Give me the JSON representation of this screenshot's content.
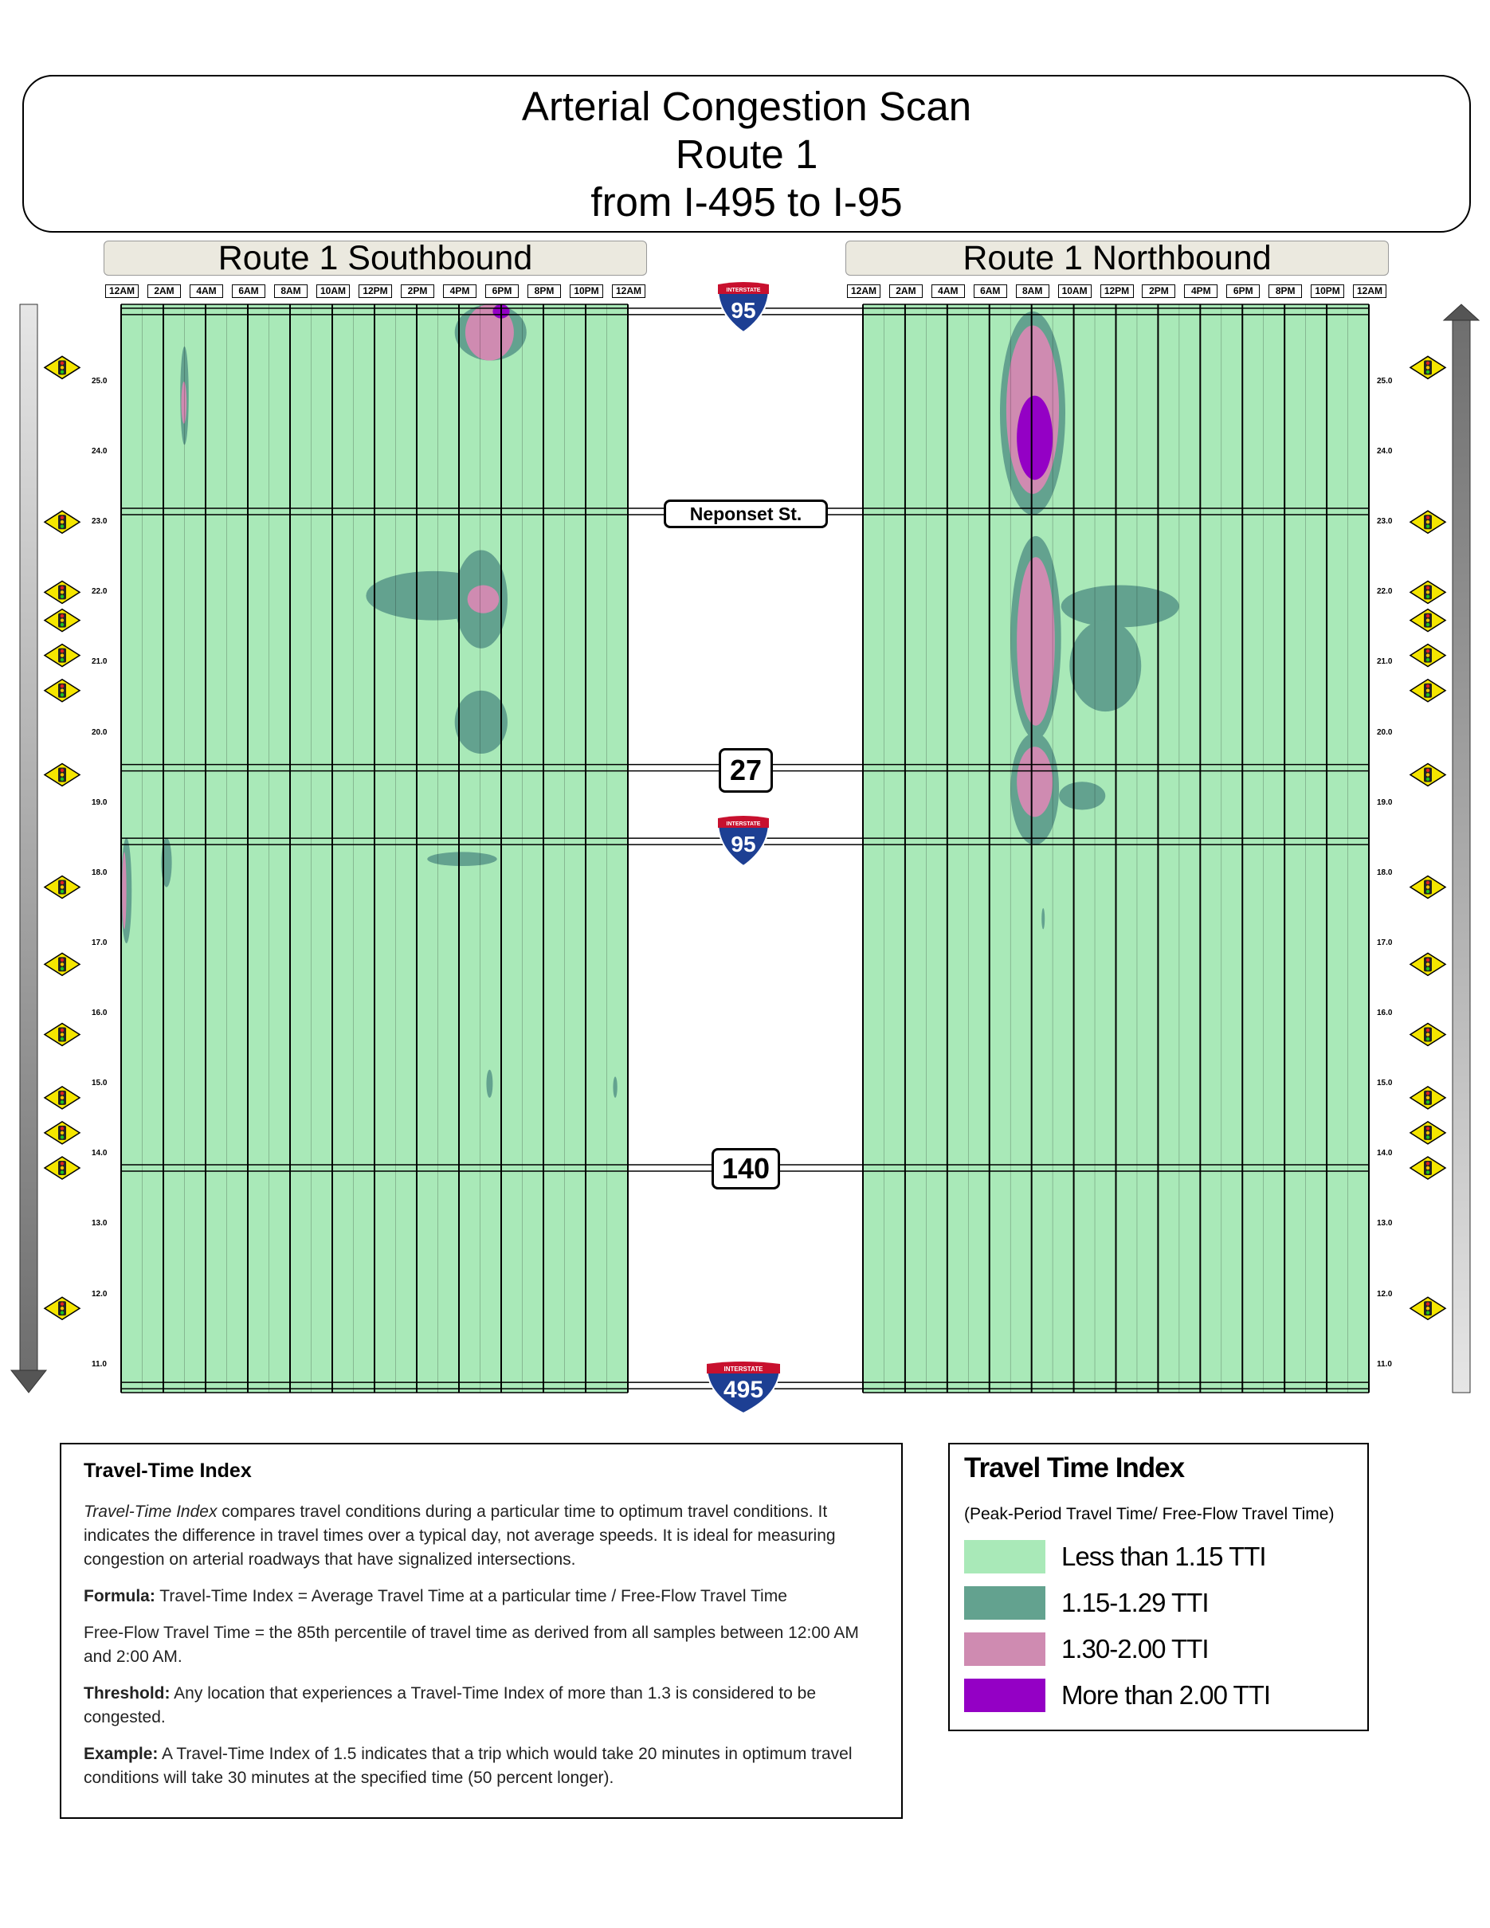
{
  "title": {
    "line1": "Arterial Congestion Scan",
    "line2": "Route 1",
    "line3": "from I-495 to I-95"
  },
  "chart_data": [
    {
      "type": "heatmap",
      "title": "Route 1 Southbound",
      "x_tick_labels": [
        "12AM",
        "2AM",
        "4AM",
        "6AM",
        "8AM",
        "10AM",
        "12PM",
        "2PM",
        "4PM",
        "6PM",
        "8PM",
        "10PM",
        "12AM"
      ],
      "y_tick_labels": [
        "25.0",
        "24.0",
        "23.0",
        "22.0",
        "21.0",
        "20.0",
        "19.0",
        "18.0",
        "17.0",
        "16.0",
        "15.0",
        "14.0",
        "13.0",
        "12.0",
        "11.0"
      ],
      "xlim_hours": [
        0,
        24
      ],
      "ylim_mile": [
        10.6,
        26.1
      ],
      "background_category": "Less than 1.15 TTI",
      "regions": [
        {
          "hour": [
            15.8,
            19.2
          ],
          "mile": [
            25.3,
            26.1
          ],
          "cat": "1.15-1.29 TTI"
        },
        {
          "hour": [
            16.3,
            18.6
          ],
          "mile": [
            25.3,
            26.1
          ],
          "cat": "1.30-2.00 TTI"
        },
        {
          "hour": [
            17.6,
            18.4
          ],
          "mile": [
            25.9,
            26.1
          ],
          "cat": "More than 2.00 TTI"
        },
        {
          "hour": [
            2.8,
            3.2
          ],
          "mile": [
            24.1,
            25.5
          ],
          "cat": "1.15-1.29 TTI"
        },
        {
          "hour": [
            2.85,
            3.1
          ],
          "mile": [
            24.4,
            25.0
          ],
          "cat": "1.30-2.00 TTI"
        },
        {
          "hour": [
            11.6,
            18.0
          ],
          "mile": [
            21.6,
            22.3
          ],
          "cat": "1.15-1.29 TTI"
        },
        {
          "hour": [
            15.8,
            18.3
          ],
          "mile": [
            21.2,
            22.6
          ],
          "cat": "1.15-1.29 TTI"
        },
        {
          "hour": [
            16.4,
            17.9
          ],
          "mile": [
            21.7,
            22.1
          ],
          "cat": "1.30-2.00 TTI"
        },
        {
          "hour": [
            15.8,
            18.3
          ],
          "mile": [
            19.7,
            20.6
          ],
          "cat": "1.15-1.29 TTI"
        },
        {
          "hour": [
            0.0,
            0.5
          ],
          "mile": [
            17.0,
            18.5
          ],
          "cat": "1.15-1.29 TTI"
        },
        {
          "hour": [
            0.05,
            0.25
          ],
          "mile": [
            17.2,
            18.3
          ],
          "cat": "1.30-2.00 TTI"
        },
        {
          "hour": [
            1.9,
            2.4
          ],
          "mile": [
            17.8,
            18.5
          ],
          "cat": "1.15-1.29 TTI"
        },
        {
          "hour": [
            14.5,
            17.8
          ],
          "mile": [
            18.1,
            18.3
          ],
          "cat": "1.15-1.29 TTI"
        },
        {
          "hour": [
            17.3,
            17.6
          ],
          "mile": [
            14.8,
            15.2
          ],
          "cat": "1.15-1.29 TTI"
        },
        {
          "hour": [
            23.3,
            23.5
          ],
          "mile": [
            14.8,
            15.1
          ],
          "cat": "1.15-1.29 TTI"
        }
      ]
    },
    {
      "type": "heatmap",
      "title": "Route 1 Northbound",
      "x_tick_labels": [
        "12AM",
        "2AM",
        "4AM",
        "6AM",
        "8AM",
        "10AM",
        "12PM",
        "2PM",
        "4PM",
        "6PM",
        "8PM",
        "10PM",
        "12AM"
      ],
      "y_tick_labels": [
        "25.0",
        "24.0",
        "23.0",
        "22.0",
        "21.0",
        "20.0",
        "19.0",
        "18.0",
        "17.0",
        "16.0",
        "15.0",
        "14.0",
        "13.0",
        "12.0",
        "11.0"
      ],
      "xlim_hours": [
        0,
        24
      ],
      "ylim_mile": [
        10.6,
        26.1
      ],
      "background_category": "Less than 1.15 TTI",
      "regions": [
        {
          "hour": [
            6.5,
            9.6
          ],
          "mile": [
            23.1,
            26.0
          ],
          "cat": "1.15-1.29 TTI"
        },
        {
          "hour": [
            6.8,
            9.3
          ],
          "mile": [
            23.4,
            25.8
          ],
          "cat": "1.30-2.00 TTI"
        },
        {
          "hour": [
            7.3,
            9.0
          ],
          "mile": [
            23.6,
            24.8
          ],
          "cat": "More than 2.00 TTI"
        },
        {
          "hour": [
            7.0,
            9.4
          ],
          "mile": [
            19.9,
            22.8
          ],
          "cat": "1.15-1.29 TTI"
        },
        {
          "hour": [
            7.3,
            9.1
          ],
          "mile": [
            20.1,
            22.5
          ],
          "cat": "1.30-2.00 TTI"
        },
        {
          "hour": [
            9.4,
            15.0
          ],
          "mile": [
            21.5,
            22.1
          ],
          "cat": "1.15-1.29 TTI"
        },
        {
          "hour": [
            9.8,
            13.2
          ],
          "mile": [
            20.3,
            21.6
          ],
          "cat": "1.15-1.29 TTI"
        },
        {
          "hour": [
            7.0,
            9.3
          ],
          "mile": [
            18.4,
            20.0
          ],
          "cat": "1.15-1.29 TTI"
        },
        {
          "hour": [
            7.3,
            9.0
          ],
          "mile": [
            18.8,
            19.8
          ],
          "cat": "1.30-2.00 TTI"
        },
        {
          "hour": [
            9.3,
            11.5
          ],
          "mile": [
            18.9,
            19.3
          ],
          "cat": "1.15-1.29 TTI"
        },
        {
          "hour": [
            8.5,
            8.6
          ],
          "mile": [
            17.2,
            17.5
          ],
          "cat": "1.15-1.29 TTI"
        }
      ]
    }
  ],
  "landmarks": {
    "top_shield": "95",
    "neponset": "Neponset St.",
    "route27": "27",
    "mid_shield": "95",
    "route140": "140",
    "bottom_shield": "495",
    "interstate_word": "INTERSTATE"
  },
  "legend": {
    "title": "Travel Time Index",
    "subtitle": "(Peak-Period Travel Time/ Free-Flow Travel Time)",
    "items": [
      {
        "label": "Less than 1.15 TTI",
        "color": "#a9e9b8"
      },
      {
        "label": "1.15-1.29 TTI",
        "color": "#63a28f"
      },
      {
        "label": "1.30-2.00 TTI",
        "color": "#cf8bb1"
      },
      {
        "label": "More than 2.00 TTI",
        "color": "#9400c5"
      }
    ]
  },
  "info": {
    "title": "Travel-Time Index",
    "p1_italic": "Travel-Time Index",
    "p1_rest": " compares travel conditions during a particular time to optimum travel conditions. It indicates the difference in travel times over a typical day, not average speeds. It is ideal for measuring congestion on arterial roadways that have signalized intersections.",
    "formula_label": "Formula:",
    "formula_text": " Travel-Time Index = Average Travel Time at a particular time / Free-Flow Travel Time",
    "freeflow_text": "Free-Flow Travel Time = the 85th percentile of travel time as derived from all samples between 12:00 AM and 2:00 AM.",
    "threshold_label": "Threshold:",
    "threshold_text": " Any location that experiences a Travel-Time Index of more than 1.3 is considered to be congested.",
    "example_label": "Example:",
    "example_text": " A Travel-Time Index of 1.5 indicates that a trip which would take 20 minutes in optimum travel conditions will take 30 minutes at the specified time (50 percent longer)."
  },
  "signals": {
    "icon": "traffic-signal-icon",
    "mileposts": [
      25.2,
      23.0,
      22.0,
      21.6,
      21.1,
      20.6,
      19.4,
      17.8,
      16.7,
      15.7,
      14.8,
      14.3,
      13.8,
      11.8
    ]
  },
  "direction_arrows": {
    "left": "down-arrow-icon",
    "right": "up-arrow-icon"
  }
}
